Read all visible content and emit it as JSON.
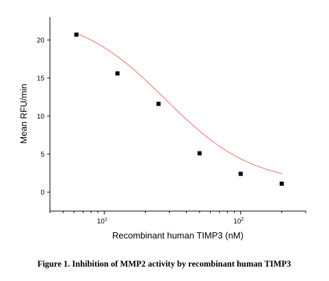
{
  "chart_data": {
    "type": "scatter",
    "title": "",
    "xlabel": "Recombinant human TIMP3 (nM)",
    "ylabel": "Mean RFU/min",
    "xscale": "log",
    "xlim": [
      4,
      300
    ],
    "ylim": [
      -2.5,
      23
    ],
    "grid": false,
    "legend": "none",
    "x_ticks": [
      {
        "value": 10,
        "base": "10",
        "exp": "1"
      },
      {
        "value": 100,
        "base": "10",
        "exp": "2"
      }
    ],
    "y_ticks": [
      {
        "value": 0,
        "label": "0"
      },
      {
        "value": 5,
        "label": "5"
      },
      {
        "value": 10,
        "label": "10"
      },
      {
        "value": 15,
        "label": "15"
      },
      {
        "value": 20,
        "label": "20"
      }
    ],
    "series": [
      {
        "marker": "square",
        "color": "#000000",
        "points": [
          {
            "x": 6.25,
            "y": 20.7
          },
          {
            "x": 12.5,
            "y": 15.6
          },
          {
            "x": 25,
            "y": 11.6
          },
          {
            "x": 50,
            "y": 5.1
          },
          {
            "x": 100,
            "y": 2.4
          },
          {
            "x": 200,
            "y": 1.1
          }
        ]
      }
    ],
    "fit_curve": {
      "type": "logistic",
      "color": "#f08080",
      "bottom": 0.95,
      "top": 23.5,
      "ec50": 28,
      "hill": 1.35,
      "x_range": [
        6.25,
        200
      ]
    }
  },
  "caption": "Figure 1. Inhibition of MMP2 activity by recombinant human TIMP3"
}
